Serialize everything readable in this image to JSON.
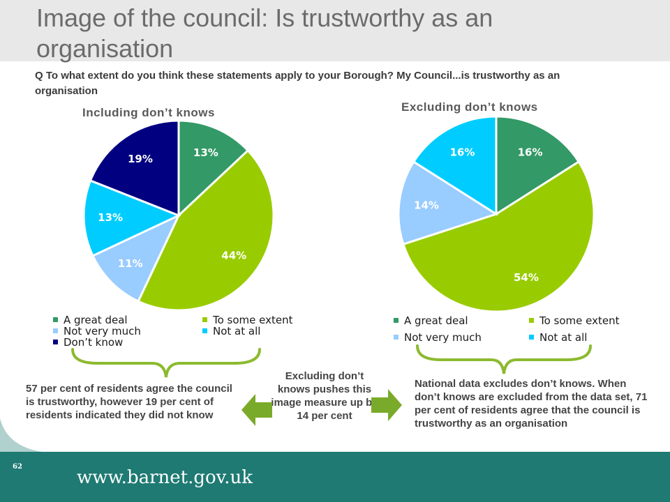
{
  "title": "Image of the council: Is trustworthy as an organisation",
  "question": "Q  To what extent do you think these statements apply to your Borough? My Council...is trustworthy as an organisation",
  "chart_data": [
    {
      "type": "pie",
      "title": "Including don’t knows",
      "categories": [
        "A great deal",
        "To some extent",
        "Not very much",
        "Not at all",
        "Don’t know"
      ],
      "values": [
        13,
        44,
        11,
        13,
        19
      ],
      "labels": [
        "13%",
        "44%",
        "11%",
        "13%",
        "19%"
      ],
      "colors": [
        "#339966",
        "#99cc00",
        "#99ccff",
        "#00ccff",
        "#000080"
      ],
      "legend": "bottom"
    },
    {
      "type": "pie",
      "title": "Excluding don’t knows",
      "categories": [
        "A great deal",
        "To some extent",
        "Not very much",
        "Not at all"
      ],
      "values": [
        16,
        54,
        14,
        16
      ],
      "labels": [
        "16%",
        "54%",
        "14%",
        "16%"
      ],
      "colors": [
        "#339966",
        "#99cc00",
        "#99ccff",
        "#00ccff"
      ],
      "legend": "bottom"
    }
  ],
  "notes": {
    "left": "57 per cent of residents agree the council is trustworthy, however 19 per cent of residents indicated they did not know",
    "center": "Excluding don’t knows pushes this image measure up by 14 per cent",
    "right": "National data excludes don’t knows. When don’t knows are excluded from the data set, 71 per cent of residents agree that the council is trustworthy as an organisation"
  },
  "footer": {
    "page_number": "62",
    "url": "www.barnet.gov.uk"
  },
  "colors": {
    "brace": "#8cba2f",
    "arrow": "#7aaa2a",
    "footer": "#1e7a73"
  }
}
